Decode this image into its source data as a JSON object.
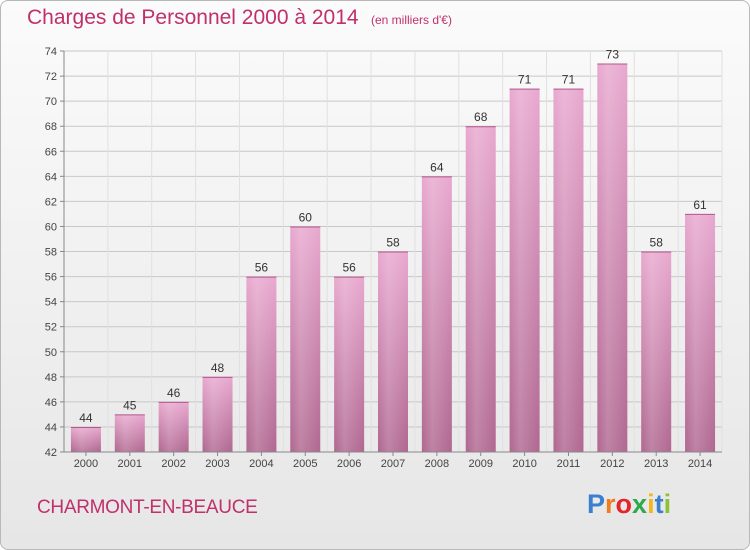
{
  "title": "Charges de Personnel 2000 à 2014",
  "subtitle": "(en milliers d'€)",
  "commune": "CHARMONT-EN-BEAUCE",
  "logo": {
    "text": "Proxiti",
    "letter_colors": [
      "#3a7fd0",
      "#f07c1c",
      "#e2262a",
      "#2da84a",
      "#f0b81a",
      "#3a7fd0",
      "#8ac33a"
    ]
  },
  "colors": {
    "title": "#c0306a",
    "bar_top": "#e8a8cf",
    "bar_bottom": "#b06790",
    "grid": "#c8c8c8"
  },
  "chart_data": {
    "type": "bar",
    "title": "Charges de Personnel 2000 à 2014",
    "subtitle": "(en milliers d'€)",
    "categories": [
      "2000",
      "2001",
      "2002",
      "2003",
      "2004",
      "2005",
      "2006",
      "2007",
      "2008",
      "2009",
      "2010",
      "2011",
      "2012",
      "2013",
      "2014"
    ],
    "values": [
      44,
      45,
      46,
      48,
      56,
      60,
      56,
      58,
      64,
      68,
      71,
      71,
      73,
      58,
      61
    ],
    "ylim": [
      42,
      74
    ],
    "yticks": [
      42,
      44,
      46,
      48,
      50,
      52,
      54,
      56,
      58,
      60,
      62,
      64,
      66,
      68,
      70,
      72,
      74
    ],
    "grid": true
  }
}
